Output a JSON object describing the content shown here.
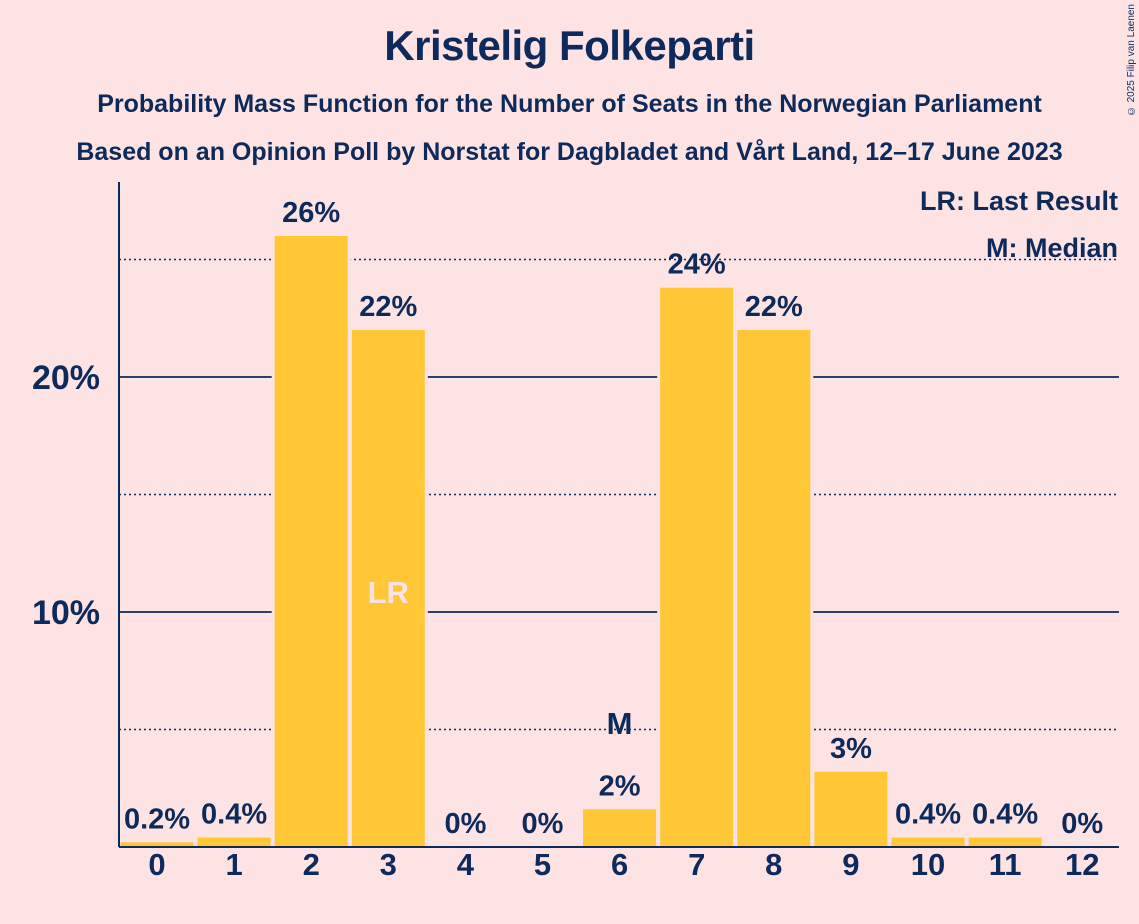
{
  "title": "Kristelig Folkeparti",
  "subtitle1": "Probability Mass Function for the Number of Seats in the Norwegian Parliament",
  "subtitle2": "Based on an Opinion Poll by Norstat for Dagbladet and Vårt Land, 12–17 June 2023",
  "copyright": "© 2025 Filip van Laenen",
  "legend": [
    "LR: Last Result",
    "M: Median"
  ],
  "colors": {
    "bar": "#ffc636",
    "text": "#0d2a5b",
    "background": "#fde3e4",
    "lr_label": "#fde3e4"
  },
  "chart_data": {
    "type": "bar",
    "categories": [
      "0",
      "1",
      "2",
      "3",
      "4",
      "5",
      "6",
      "7",
      "8",
      "9",
      "10",
      "11",
      "12"
    ],
    "values": [
      0.2,
      0.4,
      26,
      22,
      0,
      0,
      1.6,
      23.8,
      22,
      3.2,
      0.4,
      0.4,
      0
    ],
    "value_labels": [
      "0.2%",
      "0.4%",
      "26%",
      "22%",
      "0%",
      "0%",
      "2%",
      "24%",
      "22%",
      "3%",
      "0.4%",
      "0.4%",
      "0%"
    ],
    "yticks": [
      10,
      20
    ],
    "ytick_labels": [
      "10%",
      "20%"
    ],
    "minor_gridlines": [
      5,
      15,
      25
    ],
    "ylim": [
      0,
      28.3
    ],
    "markers": [
      {
        "category": "3",
        "label": "LR",
        "position": "inside"
      },
      {
        "category": "6",
        "label": "M",
        "position": "above"
      }
    ],
    "grid": true,
    "legend_position": "top-right"
  }
}
